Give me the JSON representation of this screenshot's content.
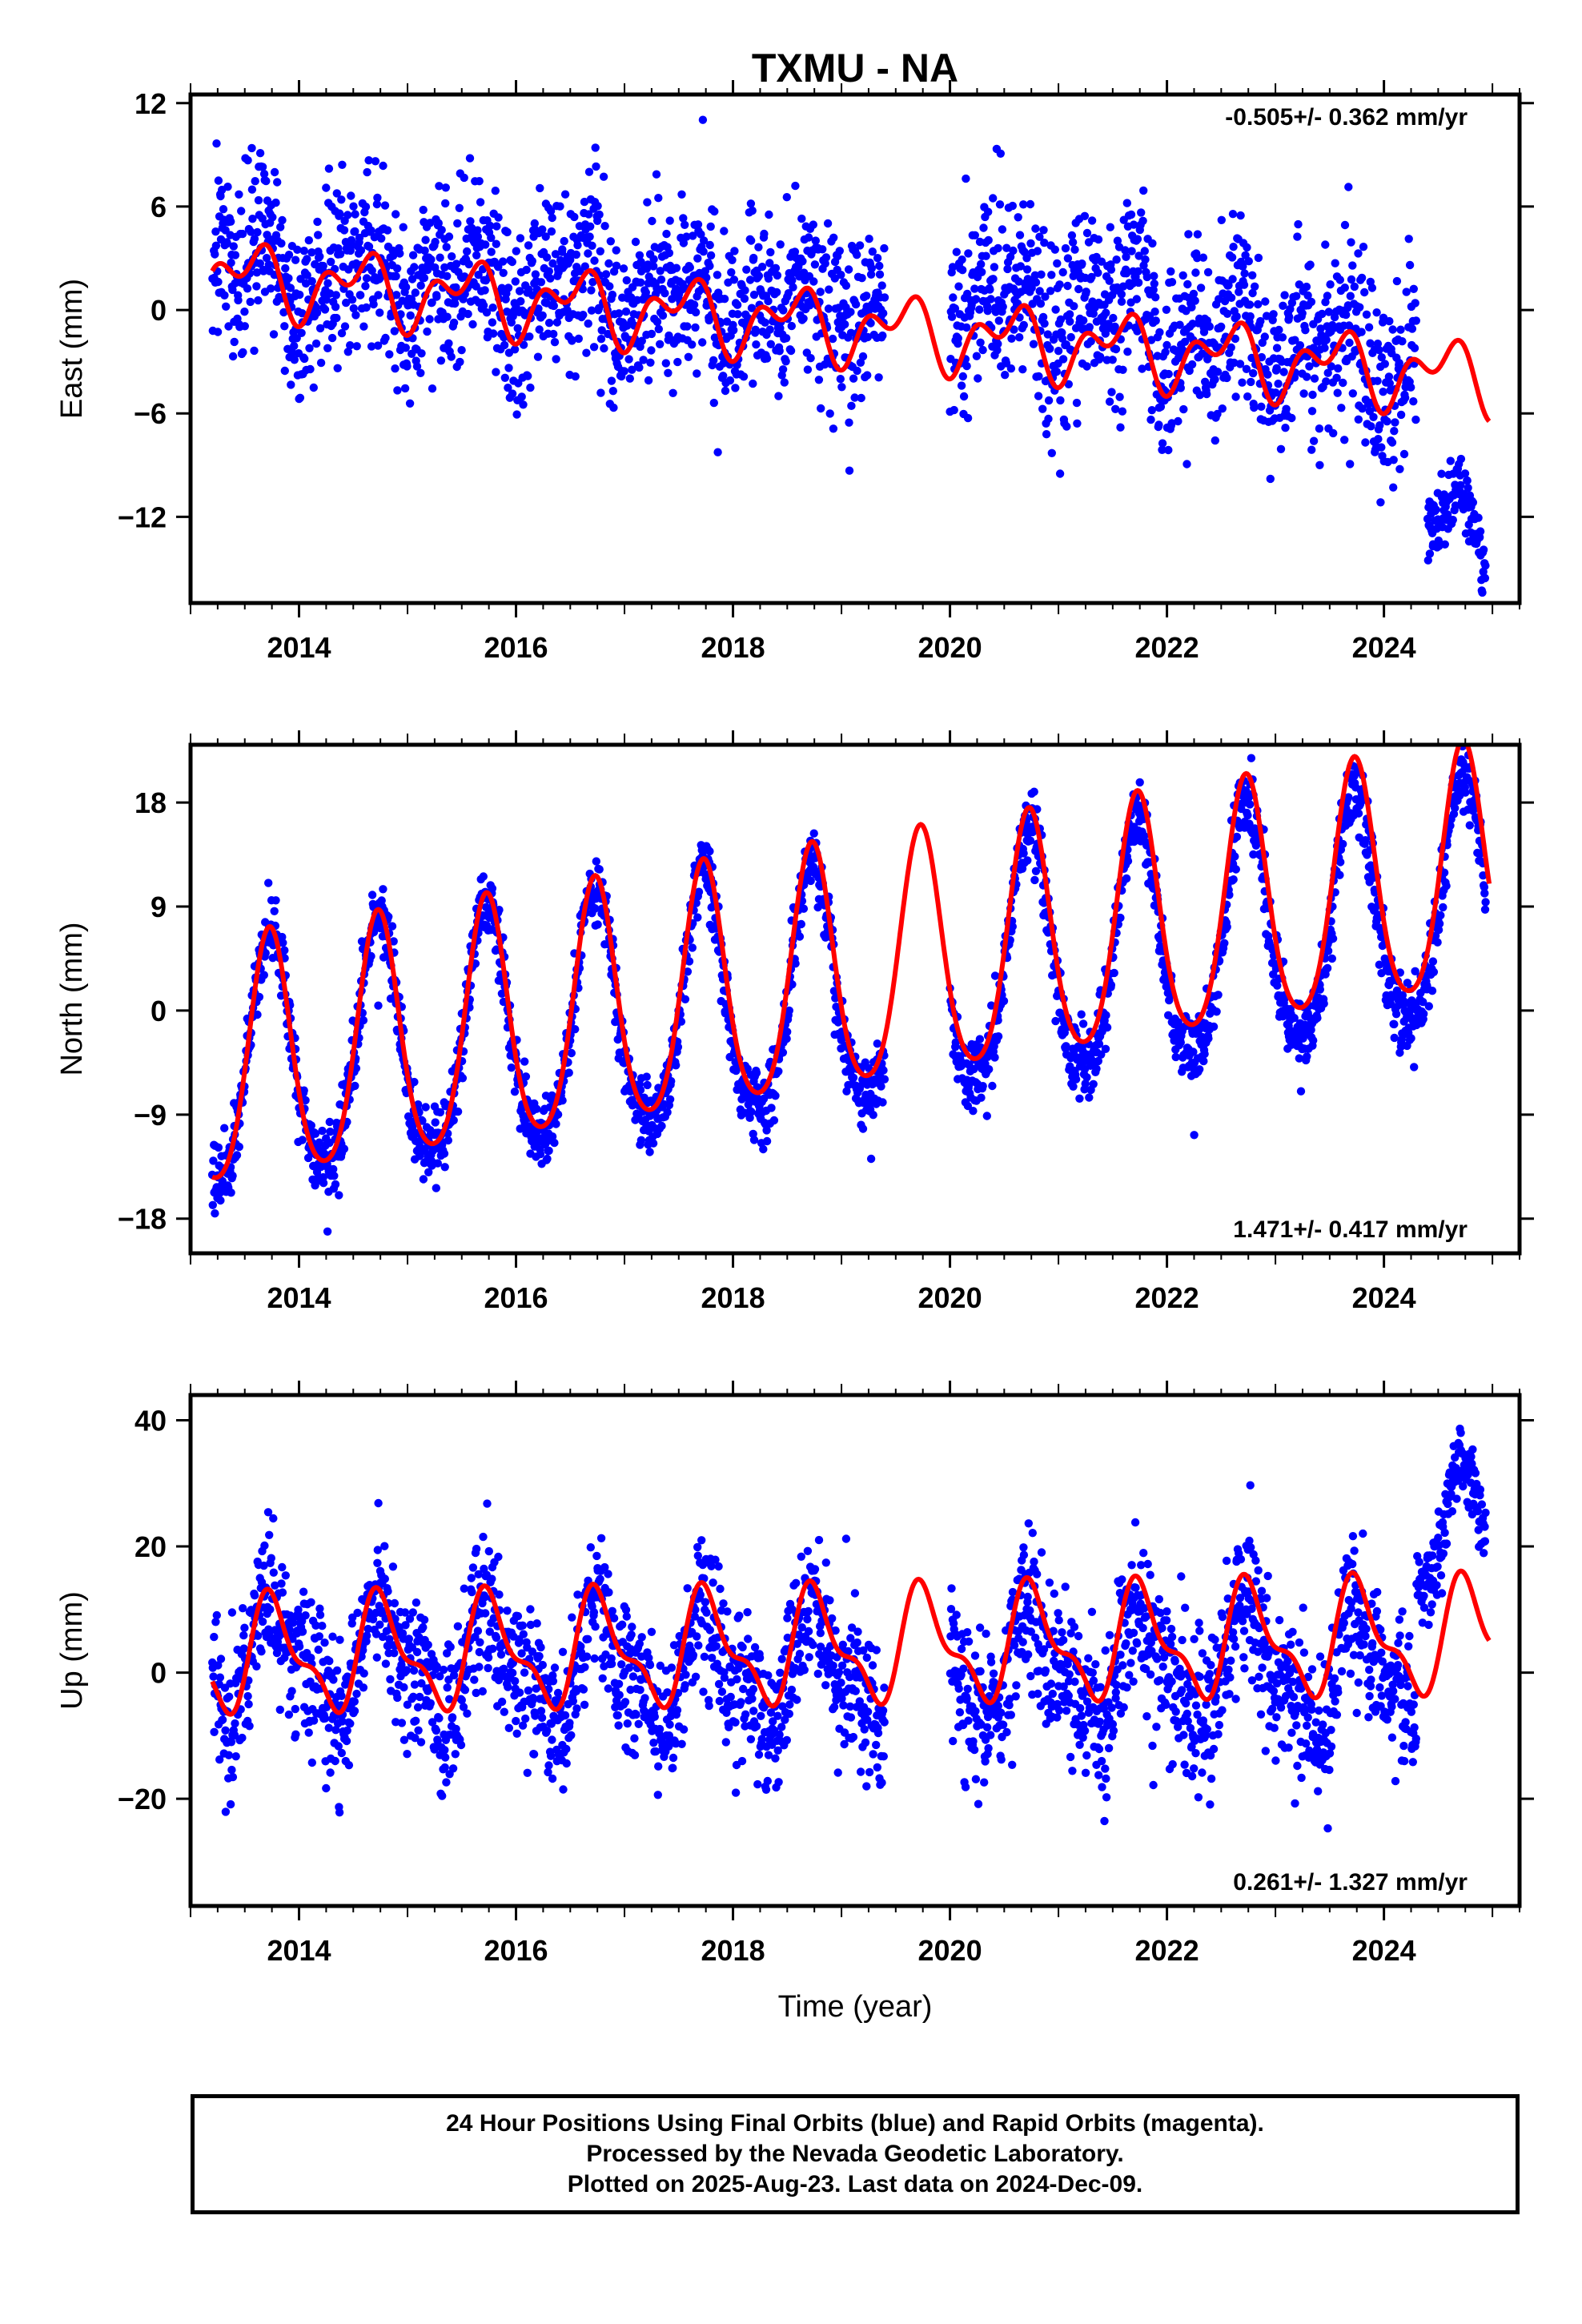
{
  "title": "TXMU - NA",
  "xlabel": "Time (year)",
  "caption": {
    "line1": "24 Hour Positions Using Final Orbits (blue) and Rapid Orbits (magenta).",
    "line2": "Processed by the Nevada Geodetic Laboratory.",
    "line3": "Plotted on 2025-Aug-23. Last data on 2024-Dec-09."
  },
  "colors": {
    "data": "#0000ff",
    "model": "#ff0000",
    "axis": "#000000"
  },
  "chart_data": [
    {
      "type": "scatter",
      "ylabel": "East (mm)",
      "rate_text": "-0.505+/- 0.362 mm/yr",
      "rate_position": "top-right",
      "xlim": [
        2013.0,
        2025.25
      ],
      "ylim": [
        -17,
        12.5
      ],
      "xticks": [
        2014,
        2016,
        2018,
        2020,
        2022,
        2024
      ],
      "yticks": [
        12,
        6,
        0,
        -6,
        -12
      ],
      "grid": false,
      "model": {
        "offset": 2.0,
        "rate": -0.505,
        "t0": 2013.2,
        "annual_amp": 1.5,
        "annual_phase": 0.3,
        "semiannual_amp": 1.2,
        "semiannual_phase": 0.1
      },
      "series": [
        {
          "color": "#0000ff",
          "segments": [
            {
              "start": 2013.2,
              "end": 2019.4,
              "level_start": 2.5,
              "level_end": 0.0,
              "scatter": 3.5
            },
            {
              "start": 2020.0,
              "end": 2024.3,
              "level_start": 1.0,
              "level_end": -3.0,
              "scatter": 3.8
            },
            {
              "start": 2024.4,
              "end": 2024.94,
              "level_start": -12.5,
              "level_end": -12.5,
              "scatter": 1.3
            }
          ]
        }
      ]
    },
    {
      "type": "scatter",
      "ylabel": "North (mm)",
      "rate_text": "1.471+/- 0.417 mm/yr",
      "rate_position": "bottom-right",
      "xlim": [
        2013.0,
        2025.25
      ],
      "ylim": [
        -21,
        23
      ],
      "xticks": [
        2014,
        2016,
        2018,
        2020,
        2022,
        2024
      ],
      "yticks": [
        18,
        9,
        0,
        -9,
        -18
      ],
      "grid": false,
      "model": {
        "offset": -5.5,
        "rate": 1.471,
        "t0": 2013.2,
        "annual_amp": 10.5,
        "annual_phase": 0.48,
        "semiannual_amp": 1.5,
        "semiannual_phase": 0.1
      },
      "series": [
        {
          "color": "#0000ff",
          "segments": [
            {
              "start": 2013.2,
              "end": 2019.4,
              "level_start": -5.5,
              "level_end": 2.0,
              "scatter": 2.2
            },
            {
              "start": 2020.0,
              "end": 2024.94,
              "level_start": 3.0,
              "level_end": 9.0,
              "scatter": 2.2
            }
          ]
        }
      ]
    },
    {
      "type": "scatter",
      "ylabel": "Up (mm)",
      "rate_text": "0.261+/- 1.327 mm/yr",
      "rate_position": "bottom-right",
      "xlim": [
        2013.0,
        2025.25
      ],
      "ylim": [
        -37,
        44
      ],
      "xticks": [
        2014,
        2016,
        2018,
        2020,
        2022,
        2024
      ],
      "yticks": [
        40,
        20,
        0,
        -20
      ],
      "grid": false,
      "model": {
        "offset": 2.5,
        "rate": 0.261,
        "t0": 2013.2,
        "annual_amp": 8.0,
        "annual_phase": 0.52,
        "semiannual_amp": 3.5,
        "semiannual_phase": 0.05
      },
      "series": [
        {
          "color": "#0000ff",
          "segments": [
            {
              "start": 2013.2,
              "end": 2019.4,
              "level_start": 2.0,
              "level_end": 0.0,
              "scatter": 8.0
            },
            {
              "start": 2020.0,
              "end": 2024.3,
              "level_start": 1.0,
              "level_end": 0.0,
              "scatter": 8.5
            },
            {
              "start": 2024.3,
              "end": 2024.94,
              "level_start": 22.0,
              "level_end": 23.0,
              "scatter": 4.5
            }
          ]
        }
      ]
    }
  ]
}
